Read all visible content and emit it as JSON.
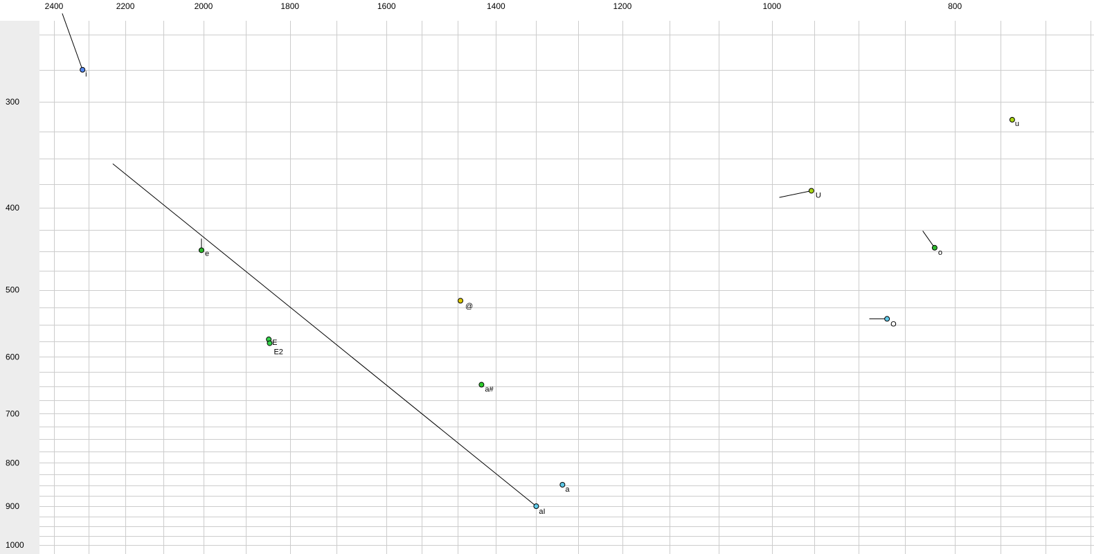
{
  "chart_data": {
    "type": "scatter",
    "title": "",
    "description": "Vowel formant plot: F2 on reversed log top axis, F1 on reversed log left axis, vowel tokens as colored dots with labels, short lines showing formant trajectories",
    "x_axis": {
      "label": "",
      "ticks": [
        2400,
        2200,
        2000,
        1800,
        1600,
        1400,
        1200,
        1000,
        800
      ],
      "scale": "log",
      "reversed": true,
      "range": [
        2560,
        675
      ]
    },
    "y_axis": {
      "label": "",
      "ticks": [
        300,
        400,
        500,
        600,
        700,
        800,
        900,
        1000
      ],
      "scale": "log",
      "reversed": true,
      "range": [
        240,
        1025
      ]
    },
    "grid": true,
    "points": [
      {
        "label": "i",
        "f2": 2318,
        "f1": 275,
        "color": "#5588ee"
      },
      {
        "label": "u",
        "f2": 746,
        "f1": 315,
        "color": "#aad516"
      },
      {
        "label": "U",
        "f2": 953,
        "f1": 382,
        "color": "#aad516"
      },
      {
        "label": "o",
        "f2": 820,
        "f1": 446,
        "color": "#2eb82e"
      },
      {
        "label": "O",
        "f2": 869,
        "f1": 541,
        "color": "#5fc9e8"
      },
      {
        "label": "e",
        "f2": 2005,
        "f1": 449,
        "color": "#2eb82e"
      },
      {
        "label": "@",
        "f2": 1462,
        "f1": 515,
        "color": "#ddc900"
      },
      {
        "label": "E",
        "f2": 1847,
        "f1": 572,
        "color": "#35d24a"
      },
      {
        "label": "E2",
        "f2": 1845,
        "f1": 578,
        "color": "#35d24a"
      },
      {
        "label": "a#",
        "f2": 1425,
        "f1": 647,
        "color": "#2ecc2e"
      },
      {
        "label": "a",
        "f2": 1291,
        "f1": 849,
        "color": "#5fc9e8"
      },
      {
        "label": "aI",
        "f2": 1333,
        "f1": 900,
        "color": "#5fc9e8"
      }
    ],
    "trajectories": [
      {
        "vowel": "i",
        "from": {
          "f2": 2376,
          "f1": 236
        },
        "to": {
          "f2": 2318,
          "f1": 275
        }
      },
      {
        "vowel": "aI",
        "from": {
          "f2": 2234,
          "f1": 355
        },
        "to": {
          "f2": 1333,
          "f1": 900
        }
      },
      {
        "vowel": "U",
        "from": {
          "f2": 991,
          "f1": 389
        },
        "to": {
          "f2": 953,
          "f1": 382
        }
      },
      {
        "vowel": "o",
        "from": {
          "f2": 832,
          "f1": 426
        },
        "to": {
          "f2": 820,
          "f1": 446
        }
      },
      {
        "vowel": "O",
        "from": {
          "f2": 888,
          "f1": 541
        },
        "to": {
          "f2": 869,
          "f1": 541
        }
      },
      {
        "vowel": "e",
        "from": {
          "f2": 2005,
          "f1": 435
        },
        "to": {
          "f2": 2005,
          "f1": 449
        }
      }
    ]
  },
  "colors": {
    "background": "#ffffff",
    "left_margin_band": "#ededed",
    "grid": "#cccccc",
    "axis_text": "#000000",
    "trajectory_line": "#000000",
    "point_outline": "#000000"
  }
}
